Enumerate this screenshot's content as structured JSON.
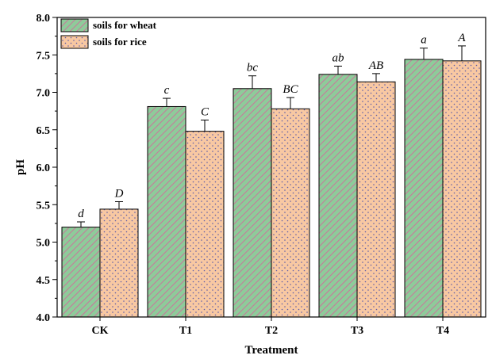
{
  "chart_data": {
    "type": "bar",
    "xlabel": "Treatment",
    "ylabel": "pH",
    "ylim": [
      4.0,
      8.0
    ],
    "y_major_step": 0.5,
    "y_ticks": [
      "4.0",
      "4.5",
      "5.0",
      "5.5",
      "6.0",
      "6.5",
      "7.0",
      "7.5",
      "8.0"
    ],
    "categories": [
      "CK",
      "T1",
      "T2",
      "T3",
      "T4"
    ],
    "legend_position": "top-left",
    "grid": false,
    "series": [
      {
        "name": "soils for wheat",
        "color": "#8ecb9a",
        "pattern": "diagonal-hatch",
        "pattern_color": "#d9609c",
        "values": [
          5.2,
          6.81,
          7.05,
          7.24,
          7.44
        ],
        "errors": [
          0.07,
          0.11,
          0.17,
          0.11,
          0.15
        ],
        "labels": [
          "d",
          "c",
          "bc",
          "ab",
          "a"
        ]
      },
      {
        "name": "soils for rice",
        "color": "#f8c8a2",
        "pattern": "dots",
        "pattern_color": "#5a5aa8",
        "values": [
          5.44,
          6.48,
          6.78,
          7.14,
          7.42
        ],
        "errors": [
          0.1,
          0.15,
          0.15,
          0.11,
          0.2
        ],
        "labels": [
          "D",
          "C",
          "BC",
          "AB",
          "A"
        ]
      }
    ]
  }
}
